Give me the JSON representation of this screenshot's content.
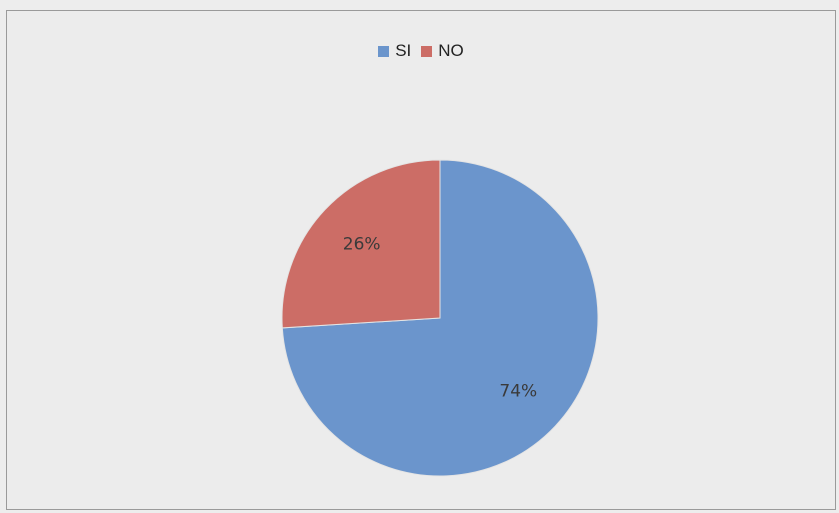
{
  "chart_data": {
    "type": "pie",
    "title": "",
    "categories": [
      "SI",
      "NO"
    ],
    "values": [
      74,
      26
    ],
    "labels": [
      "74%",
      "26%"
    ],
    "colors": [
      "#6b95cc",
      "#cc6d66"
    ],
    "legend_position": "top"
  }
}
